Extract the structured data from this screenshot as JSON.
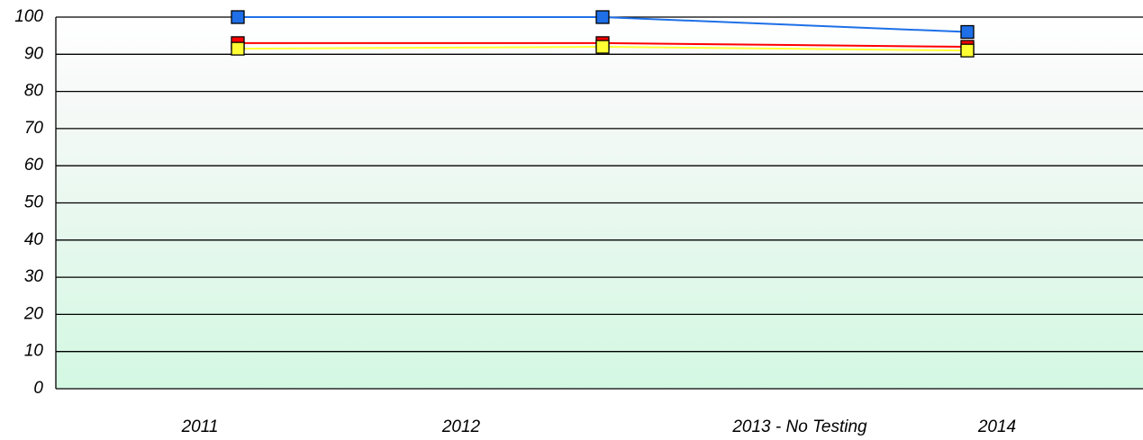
{
  "chart_data": {
    "type": "line",
    "x_axis_labels": [
      "2011",
      "2012",
      "2013 - No Testing",
      "2014"
    ],
    "series": [
      {
        "color": "#ff0000",
        "values": [
          93,
          93,
          92
        ]
      },
      {
        "color": "#ffff33",
        "values": [
          91.5,
          92,
          91
        ]
      },
      {
        "color": "#1e6fe8",
        "values": [
          100,
          100,
          96
        ]
      }
    ],
    "ylim": [
      0,
      100
    ],
    "yticks": [
      0,
      10,
      20,
      30,
      40,
      50,
      60,
      70,
      80,
      90,
      100
    ],
    "grid": true
  }
}
